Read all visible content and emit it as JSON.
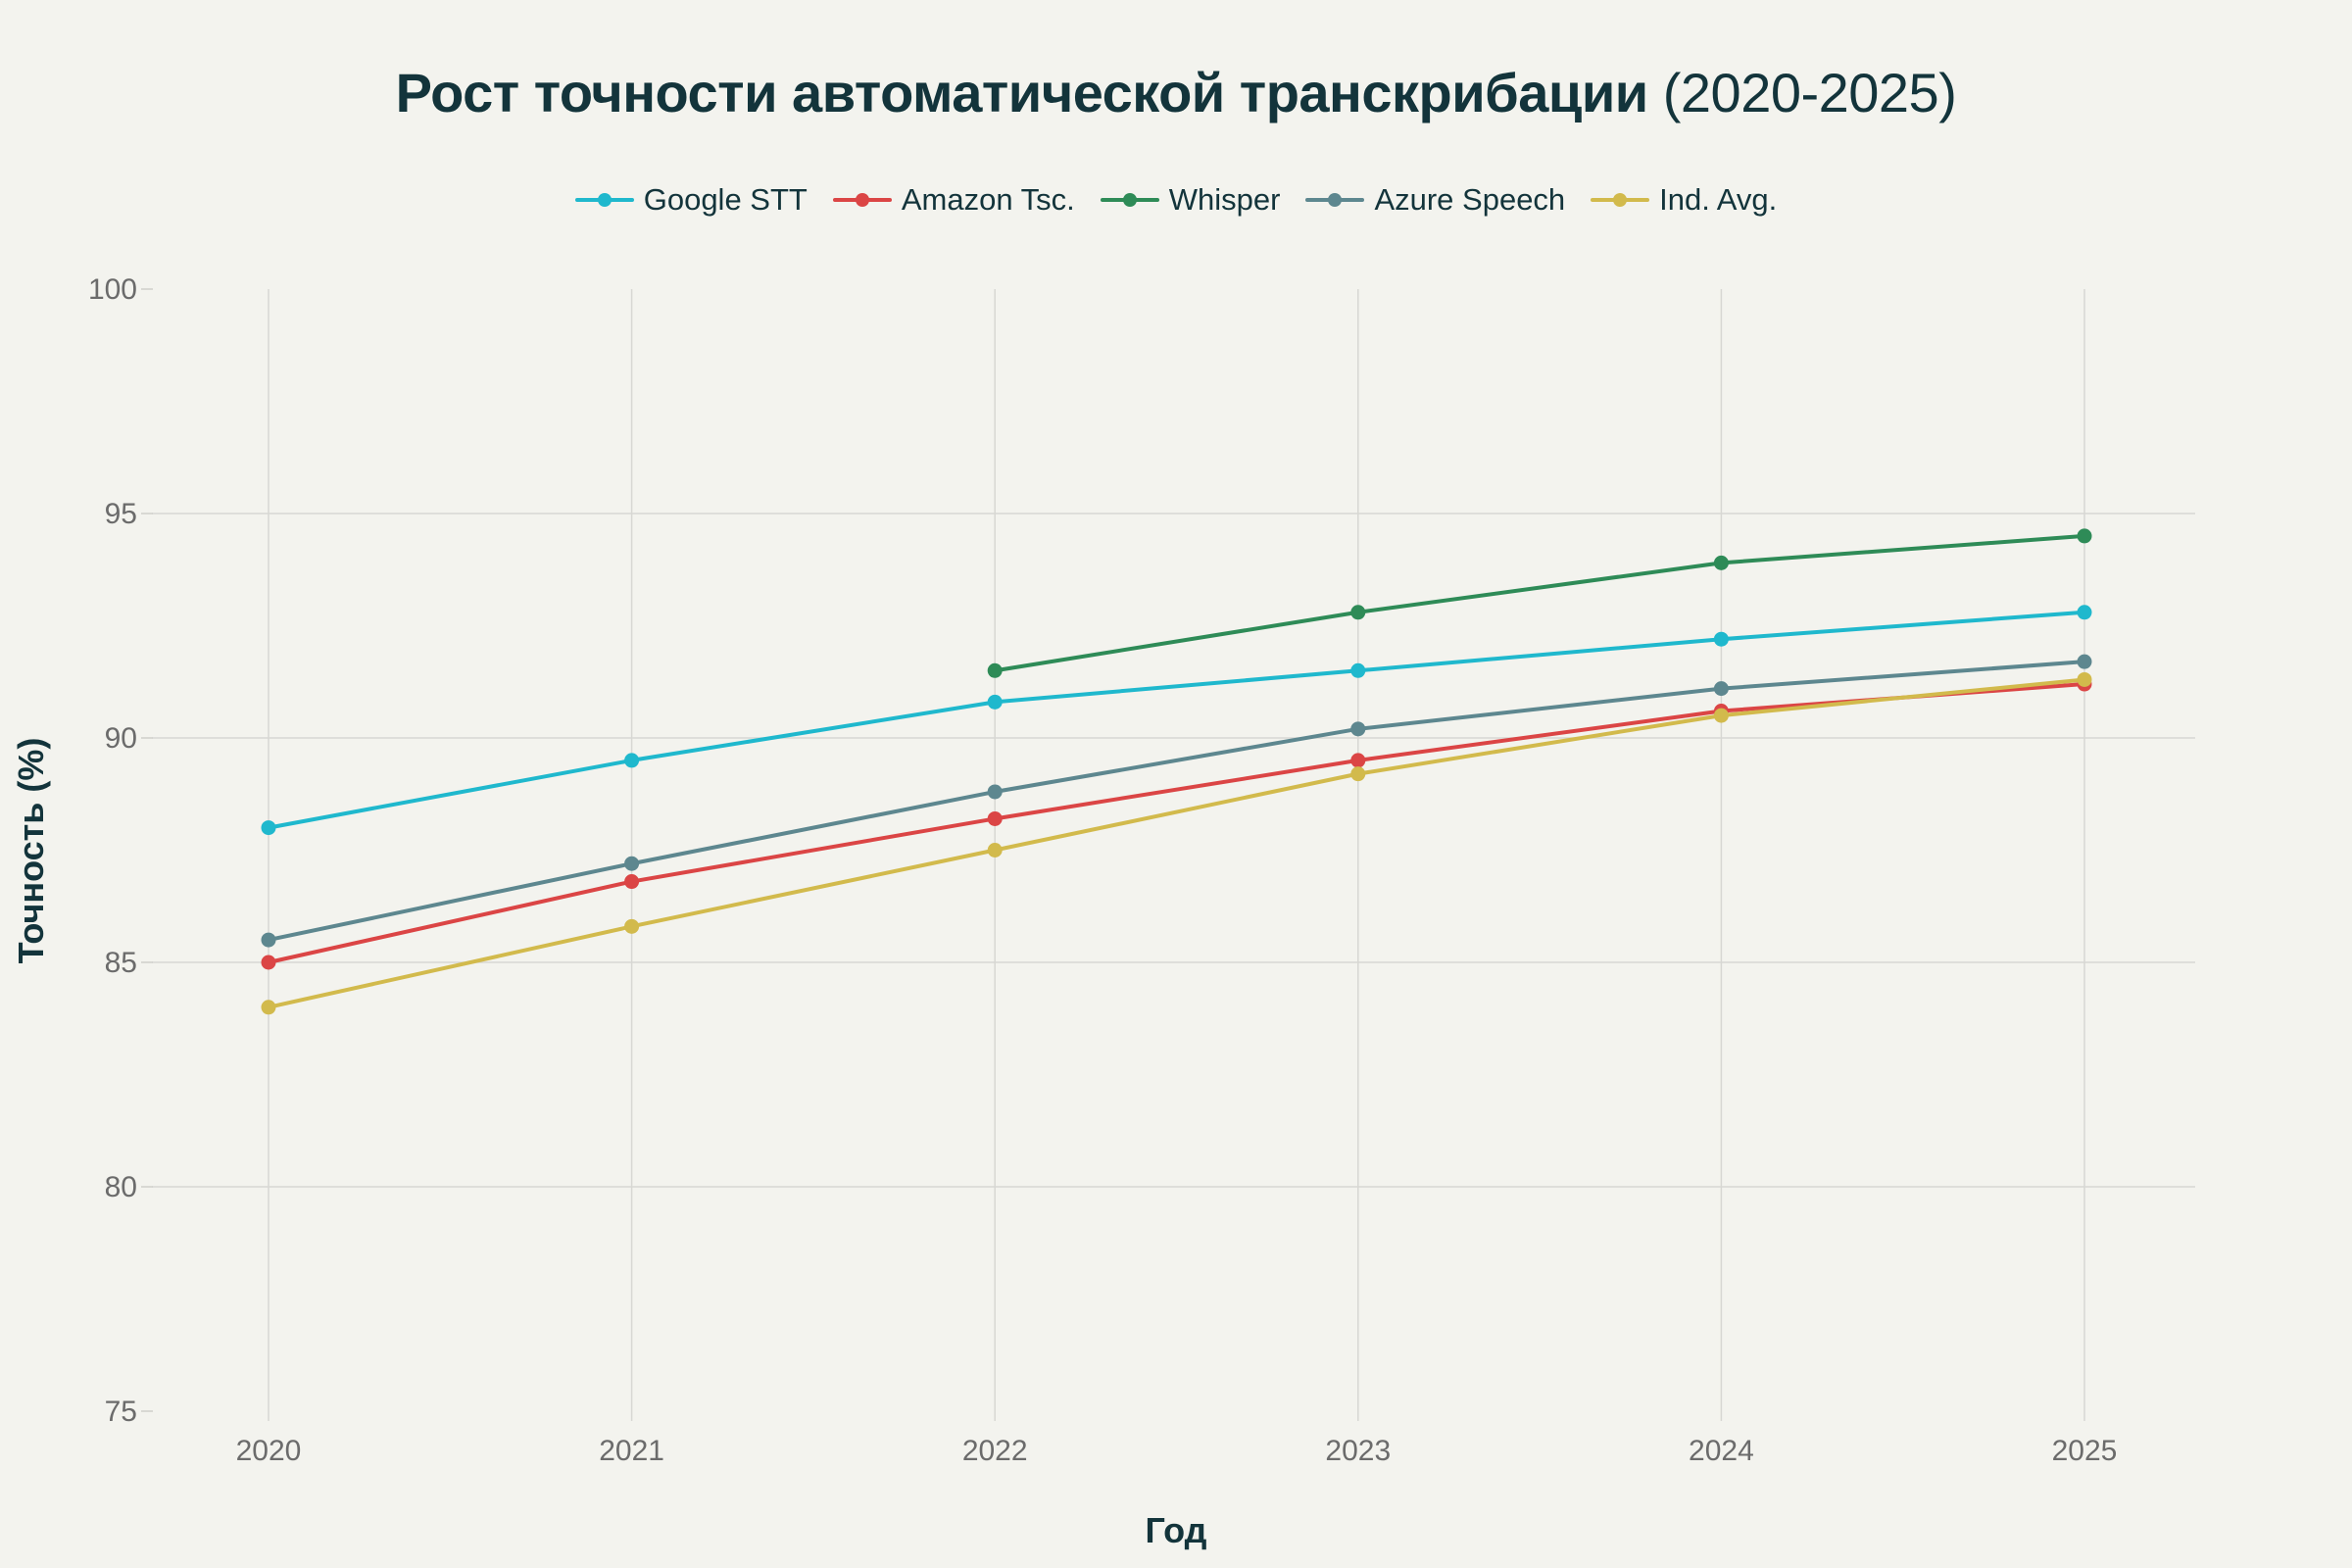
{
  "chart_data": {
    "type": "line",
    "title": "Рост точности автоматической транскрибации",
    "title_suffix": "(2020-2025)",
    "xlabel": "Год",
    "ylabel": "Точность (%)",
    "ylim": [
      75,
      100
    ],
    "yticks": [
      75,
      80,
      85,
      90,
      95,
      100
    ],
    "categories": [
      "2020",
      "2021",
      "2022",
      "2023",
      "2024",
      "2025"
    ],
    "grid": true,
    "legend_position": "top-center",
    "series": [
      {
        "name": "Google STT",
        "color": "#1FB8CD",
        "values": [
          88.0,
          89.5,
          90.8,
          91.5,
          92.2,
          92.8
        ]
      },
      {
        "name": "Amazon Tsc.",
        "color": "#DB4545",
        "values": [
          85.0,
          86.8,
          88.2,
          89.5,
          90.6,
          91.2
        ]
      },
      {
        "name": "Whisper",
        "color": "#2E8B57",
        "values": [
          null,
          null,
          91.5,
          92.8,
          93.9,
          94.5
        ]
      },
      {
        "name": "Azure Speech",
        "color": "#5D878F",
        "values": [
          85.5,
          87.2,
          88.8,
          90.2,
          91.1,
          91.7
        ]
      },
      {
        "name": "Ind. Avg.",
        "color": "#D2BA4C",
        "values": [
          84.0,
          85.8,
          87.5,
          89.2,
          90.5,
          91.3
        ]
      }
    ]
  }
}
